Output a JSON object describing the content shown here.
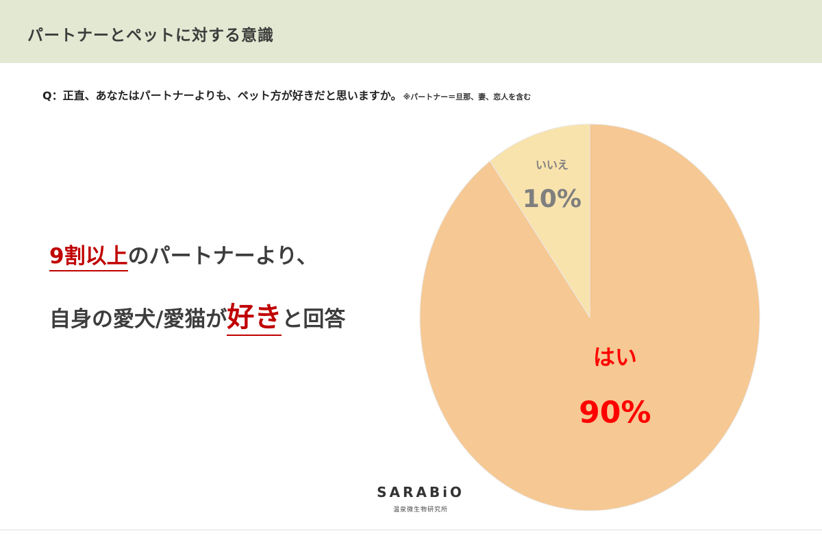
{
  "header": {
    "title": "パートナーとペットに対する意識"
  },
  "question": {
    "text": "Q：正直、あなたはパートナーよりも、ペット方が好きだと思いますか。",
    "note": "※パートナー＝旦那、妻、恋人を含む"
  },
  "headline": {
    "line1_emphasis": "9割以上",
    "line1_rest": "のパートナーより、",
    "line2_prefix": "自身の愛犬/愛猫が",
    "line2_emphasis": "好き",
    "line2_suffix": "と回答"
  },
  "logo": {
    "main": "SARABiO",
    "sub": "温泉微生物研究所"
  },
  "colors": {
    "header_band": "#e2e8d1",
    "yes_slice": "#f6c893",
    "no_slice": "#f9e3ad",
    "yes_label": "#ff0000",
    "no_label": "#7f7f7f",
    "emphasis": "#c00000"
  },
  "chart_data": {
    "type": "pie",
    "slices": [
      {
        "label": "はい",
        "value": 90,
        "value_label": "90%",
        "color": "#f6c893",
        "label_color": "#ff0000"
      },
      {
        "label": "いいえ",
        "value": 10,
        "value_label": "10%",
        "color": "#f9e3ad",
        "label_color": "#7f7f7f"
      }
    ],
    "start": "12 o'clock",
    "direction": "clockwise"
  }
}
